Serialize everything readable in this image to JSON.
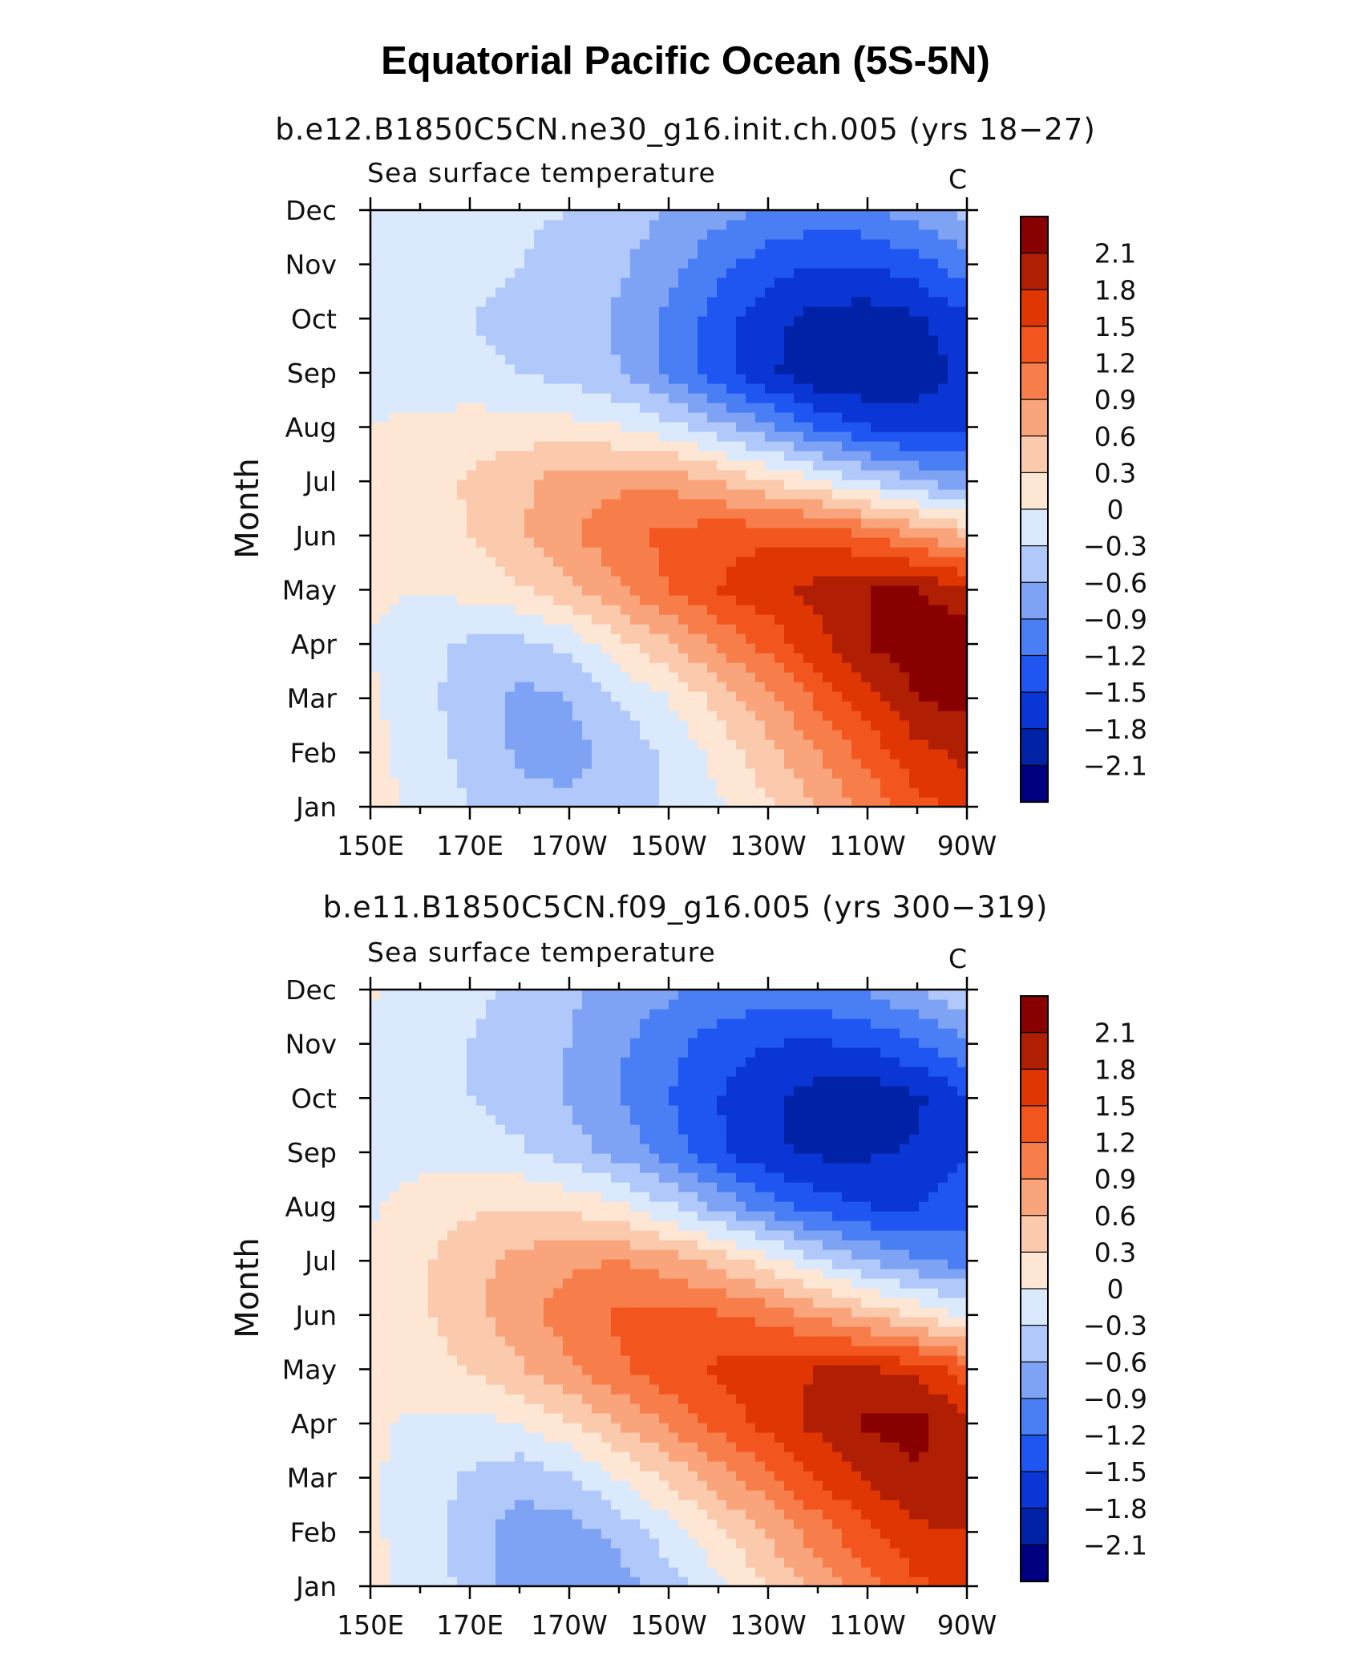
{
  "title": "Equatorial Pacific Ocean (5S-5N)",
  "colors": [
    "#000080",
    "#0022a6",
    "#0a36d6",
    "#1f55f0",
    "#4a7ef4",
    "#7fa3f4",
    "#b1c9fa",
    "#dbe9fd",
    "#fde6d4",
    "#fbc9ac",
    "#f9a47a",
    "#f77d4b",
    "#f2561e",
    "#df3603",
    "#b01e04",
    "#880000"
  ],
  "chart_data": [
    {
      "type": "heatmap",
      "title": "b.e12.B1850C5CN.ne30_g16.init.ch.005 (yrs 18−27)",
      "variable": "Sea surface temperature",
      "units": "C",
      "xlabel": "",
      "ylabel": "Month",
      "x_ticks": [
        "150E",
        "170E",
        "170W",
        "150W",
        "130W",
        "110W",
        "90W"
      ],
      "y_ticks": [
        "Jan",
        "Feb",
        "Mar",
        "Apr",
        "May",
        "Jun",
        "Jul",
        "Aug",
        "Sep",
        "Oct",
        "Nov",
        "Dec"
      ],
      "x_lon": [
        150,
        160,
        170,
        180,
        190,
        200,
        210,
        220,
        230,
        240,
        250,
        260,
        270
      ],
      "months": [
        "Jan",
        "Feb",
        "Mar",
        "Apr",
        "May",
        "Jun",
        "Jul",
        "Aug",
        "Sep",
        "Oct",
        "Nov",
        "Dec"
      ],
      "z": [
        [
          0.15,
          -0.1,
          -0.3,
          -0.5,
          -0.55,
          -0.45,
          -0.25,
          -0.05,
          0.25,
          0.6,
          1.0,
          1.4,
          1.6
        ],
        [
          0.1,
          -0.15,
          -0.4,
          -0.65,
          -0.7,
          -0.5,
          -0.25,
          0.1,
          0.5,
          0.9,
          1.3,
          1.7,
          1.9
        ],
        [
          0.05,
          -0.2,
          -0.45,
          -0.7,
          -0.6,
          -0.3,
          0.0,
          0.4,
          0.8,
          1.25,
          1.7,
          2.1,
          2.2
        ],
        [
          0.0,
          -0.2,
          -0.35,
          -0.4,
          -0.2,
          0.2,
          0.55,
          0.95,
          1.3,
          1.7,
          2.1,
          2.3,
          2.3
        ],
        [
          0.05,
          0.0,
          0.1,
          0.25,
          0.5,
          0.85,
          1.2,
          1.5,
          1.7,
          1.9,
          2.1,
          2.1,
          1.9
        ],
        [
          0.05,
          0.1,
          0.3,
          0.55,
          0.85,
          1.1,
          1.3,
          1.4,
          1.45,
          1.4,
          1.2,
          0.9,
          0.6
        ],
        [
          0.05,
          0.15,
          0.35,
          0.55,
          0.75,
          0.85,
          0.8,
          0.6,
          0.35,
          0.05,
          -0.3,
          -0.6,
          -0.8
        ],
        [
          0.0,
          0.1,
          0.15,
          0.15,
          0.1,
          0.0,
          -0.2,
          -0.5,
          -0.85,
          -1.2,
          -1.5,
          -1.6,
          -1.5
        ],
        [
          -0.15,
          -0.2,
          -0.25,
          -0.3,
          -0.4,
          -0.6,
          -0.95,
          -1.35,
          -1.75,
          -2.05,
          -2.1,
          -2.0,
          -1.7
        ],
        [
          -0.25,
          -0.3,
          -0.3,
          -0.35,
          -0.45,
          -0.65,
          -0.95,
          -1.35,
          -1.7,
          -1.9,
          -1.95,
          -1.85,
          -1.55
        ],
        [
          -0.2,
          -0.25,
          -0.25,
          -0.3,
          -0.4,
          -0.55,
          -0.8,
          -1.1,
          -1.35,
          -1.5,
          -1.5,
          -1.35,
          -1.0
        ],
        [
          -0.1,
          -0.15,
          -0.2,
          -0.25,
          -0.3,
          -0.45,
          -0.6,
          -0.8,
          -0.95,
          -1.0,
          -0.95,
          -0.75,
          -0.5
        ]
      ],
      "colorbar_labels": [
        "2.1",
        "1.8",
        "1.5",
        "1.2",
        "0.9",
        "0.6",
        "0.3",
        "0",
        "−0.3",
        "−0.6",
        "−0.9",
        "−1.2",
        "−1.5",
        "−1.8",
        "−2.1"
      ],
      "levels": [
        -2.1,
        -1.8,
        -1.5,
        -1.2,
        -0.9,
        -0.6,
        -0.3,
        0,
        0.3,
        0.6,
        0.9,
        1.2,
        1.5,
        1.8,
        2.1
      ]
    },
    {
      "type": "heatmap",
      "title": "b.e11.B1850C5CN.f09_g16.005 (yrs 300−319)",
      "variable": "Sea surface temperature",
      "units": "C",
      "xlabel": "",
      "ylabel": "Month",
      "x_ticks": [
        "150E",
        "170E",
        "170W",
        "150W",
        "130W",
        "110W",
        "90W"
      ],
      "y_ticks": [
        "Jan",
        "Feb",
        "Mar",
        "Apr",
        "May",
        "Jun",
        "Jul",
        "Aug",
        "Sep",
        "Oct",
        "Nov",
        "Dec"
      ],
      "x_lon": [
        150,
        160,
        170,
        180,
        190,
        200,
        210,
        220,
        230,
        240,
        250,
        260,
        270
      ],
      "months": [
        "Jan",
        "Feb",
        "Mar",
        "Apr",
        "May",
        "Jun",
        "Jul",
        "Aug",
        "Sep",
        "Oct",
        "Nov",
        "Dec"
      ],
      "z": [
        [
          0.1,
          -0.1,
          -0.4,
          -0.75,
          -0.9,
          -0.75,
          -0.45,
          -0.1,
          0.3,
          0.7,
          1.1,
          1.45,
          1.6
        ],
        [
          0.05,
          -0.15,
          -0.45,
          -0.75,
          -0.75,
          -0.5,
          -0.15,
          0.25,
          0.65,
          1.05,
          1.45,
          1.75,
          1.8
        ],
        [
          0.05,
          -0.15,
          -0.35,
          -0.5,
          -0.35,
          0.0,
          0.35,
          0.75,
          1.1,
          1.5,
          1.85,
          2.05,
          1.95
        ],
        [
          0.05,
          -0.05,
          -0.1,
          0.0,
          0.25,
          0.6,
          0.95,
          1.3,
          1.6,
          1.9,
          2.15,
          2.2,
          1.9
        ],
        [
          0.1,
          0.15,
          0.3,
          0.55,
          0.85,
          1.15,
          1.4,
          1.55,
          1.7,
          1.8,
          1.85,
          1.7,
          1.35
        ],
        [
          0.1,
          0.25,
          0.5,
          0.8,
          1.05,
          1.25,
          1.3,
          1.25,
          1.1,
          0.85,
          0.55,
          0.25,
          -0.05
        ],
        [
          0.05,
          0.25,
          0.5,
          0.7,
          0.85,
          0.9,
          0.75,
          0.5,
          0.15,
          -0.25,
          -0.6,
          -0.85,
          -1.0
        ],
        [
          -0.05,
          0.15,
          0.25,
          0.3,
          0.25,
          0.05,
          -0.25,
          -0.65,
          -1.05,
          -1.35,
          -1.5,
          -1.5,
          -1.35
        ],
        [
          -0.2,
          -0.1,
          -0.15,
          -0.25,
          -0.45,
          -0.7,
          -1.05,
          -1.45,
          -1.75,
          -1.85,
          -1.85,
          -1.75,
          -1.5
        ],
        [
          -0.25,
          -0.25,
          -0.3,
          -0.45,
          -0.65,
          -0.9,
          -1.2,
          -1.5,
          -1.75,
          -1.95,
          -2.0,
          -1.85,
          -1.55
        ],
        [
          -0.2,
          -0.25,
          -0.3,
          -0.45,
          -0.6,
          -0.85,
          -1.1,
          -1.35,
          -1.5,
          -1.55,
          -1.45,
          -1.25,
          -0.95
        ],
        [
          0.05,
          -0.15,
          -0.25,
          -0.35,
          -0.55,
          -0.7,
          -0.85,
          -1.0,
          -1.05,
          -1.0,
          -0.85,
          -0.6,
          -0.35
        ]
      ],
      "colorbar_labels": [
        "2.1",
        "1.8",
        "1.5",
        "1.2",
        "0.9",
        "0.6",
        "0.3",
        "0",
        "−0.3",
        "−0.6",
        "−0.9",
        "−1.2",
        "−1.5",
        "−1.8",
        "−2.1"
      ],
      "levels": [
        -2.1,
        -1.8,
        -1.5,
        -1.2,
        -0.9,
        -0.6,
        -0.3,
        0,
        0.3,
        0.6,
        0.9,
        1.2,
        1.5,
        1.8,
        2.1
      ]
    }
  ]
}
